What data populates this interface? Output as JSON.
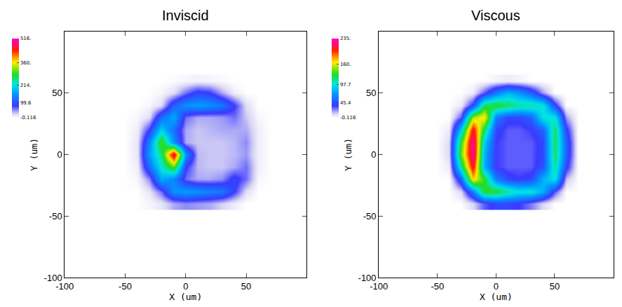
{
  "chart_data": [
    {
      "type": "heatmap",
      "title": "Inviscid",
      "x_label": "X (um)",
      "y_label": "Y (um)",
      "xlim": [
        -100,
        100
      ],
      "ylim": [
        -100,
        100
      ],
      "xticks": [
        -100,
        -50,
        0,
        50
      ],
      "yticks": [
        -100,
        -50,
        0,
        50
      ],
      "x": [
        -50,
        -40,
        -30,
        -20,
        -10,
        0,
        10,
        20,
        30,
        40,
        50,
        60,
        70
      ],
      "y": [
        -40,
        -30,
        -20,
        -10,
        0,
        10,
        20,
        30,
        40,
        50,
        60
      ],
      "z": [
        [
          0,
          0,
          5,
          15,
          40,
          50,
          45,
          40,
          25,
          10,
          0,
          0,
          0
        ],
        [
          0,
          0,
          15,
          60,
          150,
          160,
          150,
          140,
          130,
          80,
          20,
          0,
          0
        ],
        [
          0,
          5,
          50,
          170,
          140,
          60,
          40,
          40,
          50,
          90,
          60,
          5,
          0
        ],
        [
          0,
          10,
          120,
          220,
          300,
          80,
          35,
          30,
          30,
          40,
          60,
          10,
          0
        ],
        [
          0,
          15,
          160,
          250,
          480,
          150,
          35,
          30,
          30,
          35,
          45,
          10,
          0
        ],
        [
          0,
          15,
          140,
          300,
          150,
          40,
          30,
          30,
          30,
          35,
          50,
          10,
          0
        ],
        [
          0,
          10,
          80,
          200,
          120,
          40,
          30,
          35,
          40,
          40,
          40,
          10,
          0
        ],
        [
          0,
          5,
          20,
          120,
          170,
          60,
          40,
          40,
          45,
          60,
          30,
          5,
          0
        ],
        [
          0,
          0,
          5,
          20,
          110,
          150,
          160,
          150,
          130,
          80,
          20,
          0,
          0
        ],
        [
          0,
          0,
          0,
          5,
          20,
          60,
          90,
          80,
          40,
          10,
          0,
          0,
          0
        ],
        [
          0,
          0,
          0,
          0,
          2,
          5,
          8,
          6,
          3,
          0,
          0,
          0,
          0
        ]
      ],
      "zlim": [
        -0.116,
        516
      ],
      "zticks": [
        -0.116,
        99.6,
        {
          "value": 214,
          "label": "214."
        },
        {
          "value": 360,
          "label": "360."
        },
        {
          "value": 516,
          "label": "516."
        }
      ]
    },
    {
      "type": "heatmap",
      "title": "Viscous",
      "x_label": "X (um)",
      "y_label": "Y (um)",
      "xlim": [
        -100,
        100
      ],
      "ylim": [
        -100,
        100
      ],
      "xticks": [
        -100,
        -50,
        0,
        50
      ],
      "yticks": [
        -100,
        -50,
        0,
        50
      ],
      "x": [
        -50,
        -40,
        -30,
        -20,
        -10,
        0,
        10,
        20,
        30,
        40,
        50,
        60,
        70
      ],
      "y": [
        -40,
        -30,
        -20,
        -10,
        0,
        10,
        20,
        30,
        40,
        50,
        60
      ],
      "z": [
        [
          0,
          0,
          0,
          10,
          30,
          40,
          40,
          35,
          25,
          10,
          0,
          0,
          0
        ],
        [
          0,
          0,
          10,
          60,
          130,
          130,
          110,
          100,
          100,
          80,
          30,
          0,
          0
        ],
        [
          0,
          0,
          50,
          170,
          130,
          60,
          40,
          35,
          40,
          80,
          100,
          15,
          0
        ],
        [
          0,
          5,
          110,
          210,
          80,
          35,
          30,
          30,
          30,
          45,
          110,
          40,
          0
        ],
        [
          0,
          10,
          140,
          230,
          80,
          35,
          30,
          30,
          30,
          40,
          120,
          50,
          0
        ],
        [
          0,
          10,
          130,
          230,
          90,
          35,
          30,
          30,
          30,
          40,
          120,
          50,
          0
        ],
        [
          0,
          5,
          90,
          210,
          120,
          40,
          30,
          30,
          35,
          50,
          120,
          40,
          0
        ],
        [
          0,
          0,
          30,
          150,
          170,
          60,
          40,
          40,
          50,
          100,
          100,
          20,
          0
        ],
        [
          0,
          0,
          5,
          40,
          120,
          130,
          120,
          110,
          110,
          100,
          40,
          0,
          0
        ],
        [
          0,
          0,
          0,
          5,
          30,
          60,
          80,
          70,
          50,
          20,
          0,
          0,
          0
        ],
        [
          0,
          0,
          0,
          0,
          0,
          3,
          5,
          3,
          0,
          0,
          0,
          0,
          0
        ]
      ],
      "zlim": [
        -0.116,
        235
      ],
      "zticks": [
        -0.116,
        45.4,
        97.7,
        {
          "value": 160,
          "label": "160."
        },
        {
          "value": 235,
          "label": "235."
        }
      ]
    }
  ]
}
